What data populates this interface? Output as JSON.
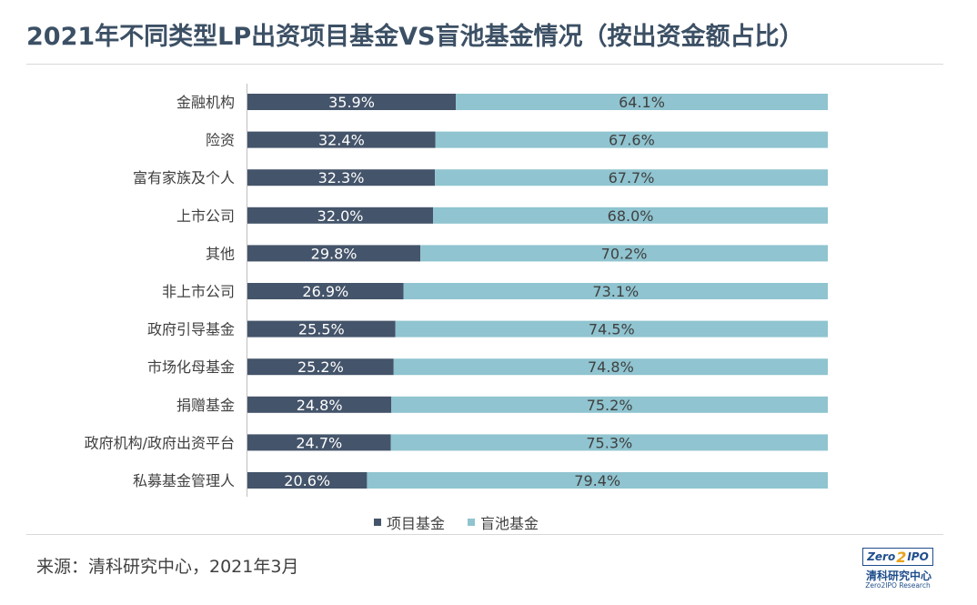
{
  "title": "2021年不同类型LP出资项目基金VS盲池基金情况（按出资金额占比）",
  "source": "来源：清科研究中心，2021年3月",
  "logo": {
    "box_left": "Zero",
    "box_two": "2",
    "box_right": "IPO",
    "cn": "清科研究中心",
    "en": "Zero2IPO Research"
  },
  "colors": {
    "project_fund": "#44546a",
    "blind_pool": "#8fc4d0",
    "title": "#3c5065"
  },
  "chart_data": {
    "type": "bar",
    "orientation": "horizontal",
    "stacked": true,
    "percent_stacked": true,
    "title": "2021年不同类型LP出资项目基金VS盲池基金情况（按出资金额占比）",
    "xlim": [
      0,
      100
    ],
    "grid": false,
    "legend_position": "bottom",
    "categories": [
      "金融机构",
      "险资",
      "富有家族及个人",
      "上市公司",
      "其他",
      "非上市公司",
      "政府引导基金",
      "市场化母基金",
      "捐赠基金",
      "政府机构/政府出资平台",
      "私募基金管理人"
    ],
    "series": [
      {
        "name": "项目基金",
        "color": "#44546a",
        "values": [
          35.9,
          32.4,
          32.3,
          32.0,
          29.8,
          26.9,
          25.5,
          25.2,
          24.8,
          24.7,
          20.6
        ],
        "labels": [
          "35.9%",
          "32.4%",
          "32.3%",
          "32.0%",
          "29.8%",
          "26.9%",
          "25.5%",
          "25.2%",
          "24.8%",
          "24.7%",
          "20.6%"
        ]
      },
      {
        "name": "盲池基金",
        "color": "#8fc4d0",
        "values": [
          64.1,
          67.6,
          67.7,
          68.0,
          70.2,
          73.1,
          74.5,
          74.8,
          75.2,
          75.3,
          79.4
        ],
        "labels": [
          "64.1%",
          "67.6%",
          "67.7%",
          "68.0%",
          "70.2%",
          "73.1%",
          "74.5%",
          "74.8%",
          "75.2%",
          "75.3%",
          "79.4%"
        ]
      }
    ]
  }
}
